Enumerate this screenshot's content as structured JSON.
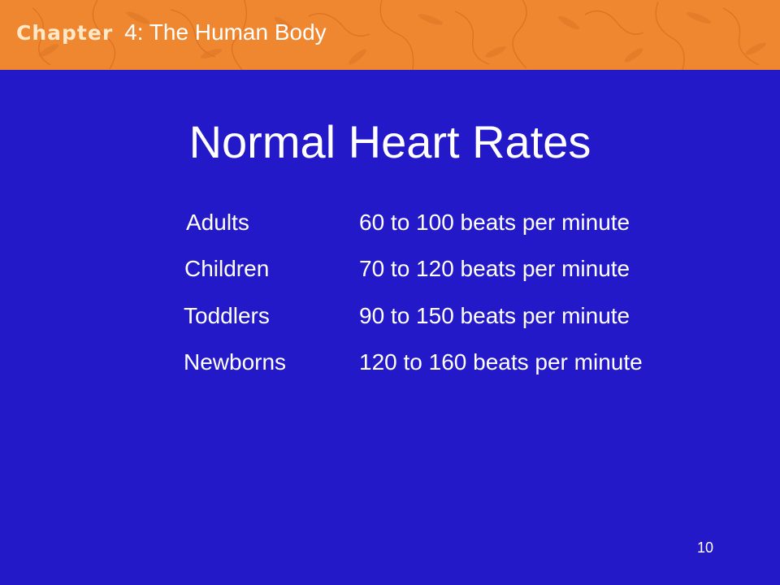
{
  "header": {
    "chapter_word": "Chapter",
    "chapter_title": "4: The Human Body"
  },
  "slide": {
    "title": "Normal Heart Rates",
    "rates": [
      {
        "group": "Adults",
        "range": "60 to 100 beats per minute"
      },
      {
        "group": "Children",
        "range": "70 to 120 beats per minute"
      },
      {
        "group": "Toddlers",
        "range": "90 to 150 beats per minute"
      },
      {
        "group": "Newborns",
        "range": "120 to 160 beats per minute"
      }
    ],
    "page_number": "10"
  },
  "colors": {
    "background": "#2419c8",
    "header_bar": "#ef8731",
    "text": "#ffffff"
  }
}
